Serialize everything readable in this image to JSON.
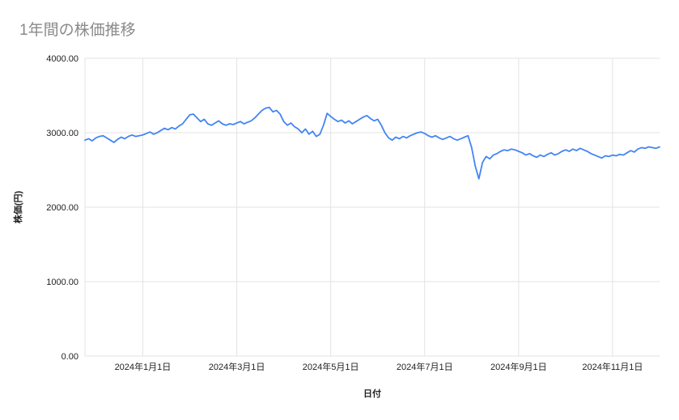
{
  "title": "1年間の株価推移",
  "chart_data": {
    "type": "line",
    "title": "1年間の株価推移",
    "xlabel": "日付",
    "ylabel": "株価(円)",
    "ylim": [
      0,
      4000
    ],
    "grid": true,
    "legend": "none",
    "line_color": "#4285f4",
    "grid_color": "#e3e3e3",
    "y_ticks": [
      {
        "value": 0,
        "label": "0.00"
      },
      {
        "value": 1000,
        "label": "1000.00"
      },
      {
        "value": 2000,
        "label": "2000.00"
      },
      {
        "value": 3000,
        "label": "3000.00"
      },
      {
        "value": 4000,
        "label": "4000.00"
      }
    ],
    "x_ticks": [
      {
        "pos": 0.1006,
        "label": "2024年1月1日"
      },
      {
        "pos": 0.2642,
        "label": "2024年3月1日"
      },
      {
        "pos": 0.4277,
        "label": "2024年5月1日"
      },
      {
        "pos": 0.5912,
        "label": "2024年7月1日"
      },
      {
        "pos": 0.7547,
        "label": "2024年9月1日"
      },
      {
        "pos": 0.9182,
        "label": "2024年11月1日"
      }
    ],
    "series_name": "株価",
    "values": [
      2900,
      2920,
      2890,
      2930,
      2950,
      2960,
      2930,
      2900,
      2870,
      2910,
      2940,
      2920,
      2950,
      2970,
      2950,
      2960,
      2970,
      2990,
      3010,
      2980,
      3000,
      3030,
      3060,
      3040,
      3070,
      3050,
      3090,
      3120,
      3180,
      3240,
      3250,
      3200,
      3150,
      3180,
      3120,
      3100,
      3130,
      3160,
      3120,
      3100,
      3120,
      3110,
      3130,
      3150,
      3120,
      3140,
      3160,
      3200,
      3250,
      3300,
      3330,
      3340,
      3280,
      3300,
      3250,
      3150,
      3100,
      3130,
      3080,
      3050,
      3000,
      3050,
      2980,
      3020,
      2950,
      2980,
      3100,
      3260,
      3220,
      3180,
      3150,
      3170,
      3130,
      3160,
      3120,
      3150,
      3180,
      3210,
      3230,
      3190,
      3160,
      3180,
      3100,
      3000,
      2930,
      2900,
      2940,
      2920,
      2950,
      2930,
      2960,
      2980,
      3000,
      3010,
      2990,
      2960,
      2940,
      2960,
      2930,
      2910,
      2930,
      2950,
      2920,
      2900,
      2920,
      2940,
      2960,
      2800,
      2550,
      2380,
      2600,
      2680,
      2650,
      2700,
      2720,
      2750,
      2770,
      2760,
      2780,
      2770,
      2750,
      2730,
      2700,
      2720,
      2690,
      2670,
      2700,
      2680,
      2710,
      2730,
      2700,
      2720,
      2750,
      2770,
      2750,
      2780,
      2760,
      2790,
      2770,
      2750,
      2720,
      2700,
      2680,
      2660,
      2690,
      2680,
      2700,
      2690,
      2710,
      2700,
      2730,
      2760,
      2740,
      2780,
      2800,
      2790,
      2810,
      2800,
      2790,
      2810
    ]
  }
}
